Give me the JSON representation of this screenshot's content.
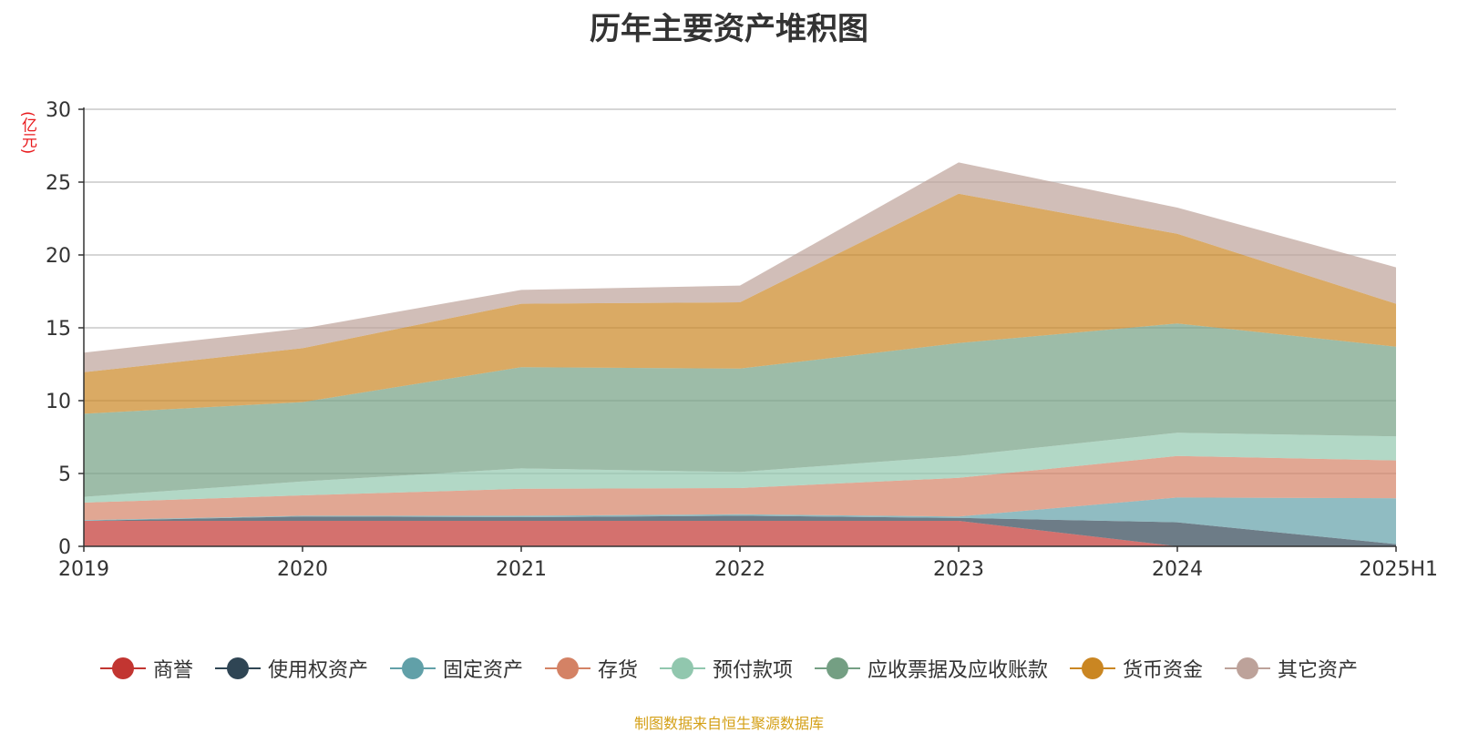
{
  "chart_data": {
    "type": "area",
    "title": "历年主要资产堆积图",
    "ylabel": "(亿元)",
    "xlabel": "",
    "stacked": true,
    "grid": true,
    "legend_position": "bottom",
    "categories": [
      "2019",
      "2020",
      "2021",
      "2022",
      "2023",
      "2024",
      "2025H1"
    ],
    "ylim": [
      0,
      30
    ],
    "yticks": [
      0,
      5,
      10,
      15,
      20,
      25,
      30
    ],
    "series": [
      {
        "name": "商誉",
        "color": "#c23531",
        "values": [
          1.75,
          1.75,
          1.75,
          1.75,
          1.75,
          0.0,
          0.0
        ]
      },
      {
        "name": "使用权资产",
        "color": "#2f4554",
        "values": [
          0.0,
          0.3,
          0.25,
          0.35,
          0.2,
          1.65,
          0.15
        ]
      },
      {
        "name": "固定资产",
        "color": "#61a0a8",
        "values": [
          0.05,
          0.05,
          0.1,
          0.1,
          0.1,
          1.7,
          3.15
        ]
      },
      {
        "name": "存货",
        "color": "#d48265",
        "values": [
          1.2,
          1.4,
          1.85,
          1.8,
          2.65,
          2.85,
          2.6
        ]
      },
      {
        "name": "预付款项",
        "color": "#91c7ae",
        "values": [
          0.4,
          0.95,
          1.4,
          1.1,
          1.5,
          1.6,
          1.65
        ]
      },
      {
        "name": "应收票据及应收账款",
        "color": "#749f83",
        "values": [
          5.7,
          5.45,
          6.95,
          7.1,
          7.75,
          7.5,
          6.15
        ]
      },
      {
        "name": "货币资金",
        "color": "#ca8622",
        "values": [
          2.85,
          3.7,
          4.35,
          4.55,
          10.25,
          6.15,
          2.95
        ]
      },
      {
        "name": "其它资产",
        "color": "#bda29a",
        "values": [
          1.35,
          1.35,
          0.95,
          1.15,
          2.15,
          1.8,
          2.5
        ]
      }
    ]
  },
  "source_note": "制图数据来自恒生聚源数据库"
}
